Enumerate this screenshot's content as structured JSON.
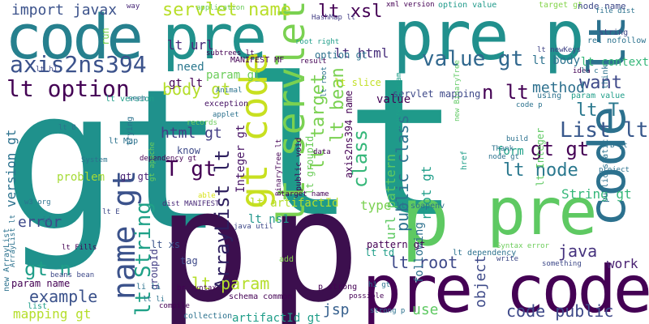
{
  "words": [
    {
      "text": "gt",
      "color": "#1f918c",
      "vertical": false
    },
    {
      "text": "lt",
      "color": "#1f9a8a",
      "vertical": false
    },
    {
      "text": "p",
      "color": "#3c0f4e",
      "vertical": false
    },
    {
      "text": "code",
      "color": "#26808e",
      "vertical": false
    },
    {
      "text": "pre",
      "color": "#21918c",
      "vertical": false
    },
    {
      "text": "pre p",
      "color": "#21908d",
      "vertical": false
    },
    {
      "text": "pre code",
      "color": "#440154",
      "vertical": false
    },
    {
      "text": "pre",
      "color": "#5ec962",
      "vertical": false
    },
    {
      "text": "code lt",
      "color": "#2c718e",
      "vertical": true
    },
    {
      "text": "lt servlet",
      "color": "#7ad151",
      "vertical": true
    },
    {
      "text": "gt code",
      "color": "#c8e020",
      "vertical": true
    },
    {
      "text": "p",
      "color": "#5ec962",
      "vertical": false
    },
    {
      "text": "axis2ns394",
      "color": "#3b528b",
      "vertical": false
    },
    {
      "text": "lt option",
      "color": "#440154",
      "vertical": false
    },
    {
      "text": "servlet name",
      "color": "#b8de29",
      "vertical": false
    },
    {
      "text": "import javax",
      "color": "#3b528b",
      "vertical": false
    },
    {
      "text": "lt xsl",
      "color": "#440154",
      "vertical": false
    },
    {
      "text": "value gt",
      "color": "#31688e",
      "vertical": false
    },
    {
      "text": "lt url",
      "color": "#482878",
      "vertical": false
    },
    {
      "text": "lt html",
      "color": "#472d7b",
      "vertical": false
    },
    {
      "text": "name gt",
      "color": "#3b528b",
      "vertical": true
    },
    {
      "text": "ArrayList lt",
      "color": "#2d1e5e",
      "vertical": true
    },
    {
      "text": "lt String",
      "color": "#1fa187",
      "vertical": true
    },
    {
      "text": "lt param",
      "color": "#b5de2b",
      "vertical": false
    },
    {
      "text": "example",
      "color": "#3b528b",
      "vertical": false
    },
    {
      "text": "gt n",
      "color": "#1f9e89",
      "vertical": false
    },
    {
      "text": "T gt",
      "color": "#440154",
      "vertical": false
    },
    {
      "text": "body gt",
      "color": "#b5de2b",
      "vertical": false
    },
    {
      "text": "html gt",
      "color": "#433e85",
      "vertical": false
    },
    {
      "text": "lt target",
      "color": "#7ad151",
      "vertical": true
    },
    {
      "text": "lt bean",
      "color": "#7ad151",
      "vertical": true
    },
    {
      "text": "class",
      "color": "#35b779",
      "vertical": true
    },
    {
      "text": "public class",
      "color": "#2c728e",
      "vertical": true
    },
    {
      "text": "root gt",
      "color": "#1f9e89",
      "vertical": true
    },
    {
      "text": "url pattern",
      "color": "#5ec962",
      "vertical": true
    },
    {
      "text": "List lt",
      "color": "#38588c",
      "vertical": false
    },
    {
      "text": "want",
      "color": "#3e4989",
      "vertical": false
    },
    {
      "text": "gt gt",
      "color": "#440154",
      "vertical": false
    },
    {
      "text": "lt node",
      "color": "#2a788e",
      "vertical": false
    },
    {
      "text": "n lt",
      "color": "#440154",
      "vertical": false
    },
    {
      "text": "lt T",
      "color": "#2a788e",
      "vertical": false
    },
    {
      "text": "String gt",
      "color": "#35b779",
      "vertical": false
    },
    {
      "text": "method",
      "color": "#2d708e",
      "vertical": false
    },
    {
      "text": "java",
      "color": "#46337e",
      "vertical": false
    },
    {
      "text": "lt root",
      "color": "#3e4989",
      "vertical": false
    },
    {
      "text": "code public",
      "color": "#3e4989",
      "vertical": false
    },
    {
      "text": "jsp",
      "color": "#355f8d",
      "vertical": false
    },
    {
      "text": "use",
      "color": "#5ec962",
      "vertical": false
    },
    {
      "text": "lt context",
      "color": "#35b779",
      "vertical": false
    },
    {
      "text": "form",
      "color": "#1fa188",
      "vertical": false
    },
    {
      "text": "lt body",
      "color": "#2c728e",
      "vertical": false
    },
    {
      "text": "work",
      "color": "#482071",
      "vertical": false
    },
    {
      "text": "value",
      "color": "#440154",
      "vertical": false
    },
    {
      "text": "type",
      "color": "#7ad151",
      "vertical": false
    },
    {
      "text": "object",
      "color": "#3e4a89",
      "vertical": true
    },
    {
      "text": "error",
      "color": "#3e4989",
      "vertical": false
    },
    {
      "text": "mapping gt",
      "color": "#b5de2b",
      "vertical": false
    },
    {
      "text": "version gt",
      "color": "#2c728e",
      "vertical": true
    },
    {
      "text": "lt artifactId",
      "color": "#b5de2b",
      "vertical": false
    },
    {
      "text": "artifactId gt",
      "color": "#1f9e89",
      "vertical": false
    },
    {
      "text": "lt ns1",
      "color": "#1f958b",
      "vertical": false
    },
    {
      "text": "option value",
      "color": "#1f9a8a",
      "vertical": false
    },
    {
      "text": "servlet mapping",
      "color": "#3e4989",
      "vertical": false
    },
    {
      "text": "lt slice",
      "color": "#c2df23",
      "vertical": false
    },
    {
      "text": "gt lt",
      "color": "#440154",
      "vertical": false
    },
    {
      "text": "need",
      "color": "#2a788e",
      "vertical": false
    },
    {
      "text": "param gt",
      "color": "#6ccd5a",
      "vertical": false
    },
    {
      "text": "problem",
      "color": "#a5db36",
      "vertical": false
    },
    {
      "text": "lt td",
      "color": "#1f9e89",
      "vertical": false
    },
    {
      "text": "Integer gt",
      "color": "#471365",
      "vertical": true
    },
    {
      "text": "following",
      "color": "#2d708e",
      "vertical": true
    },
    {
      "text": "pattern gt",
      "color": "#440154",
      "vertical": false
    },
    {
      "text": "know",
      "color": "#3e4989",
      "vertical": false
    },
    {
      "text": "option gt",
      "color": "#2c728e",
      "vertical": false
    },
    {
      "text": "lt xs",
      "color": "#3a538b",
      "vertical": false
    },
    {
      "text": "gt gt",
      "color": "#482173",
      "vertical": false
    },
    {
      "text": "lt version",
      "color": "#1f9e89",
      "vertical": false
    },
    {
      "text": "exception",
      "color": "#471365",
      "vertical": false
    },
    {
      "text": "groupId",
      "color": "#433e85",
      "vertical": true
    },
    {
      "text": "lt groupId",
      "color": "#6ccd5a",
      "vertical": true
    },
    {
      "text": "lt Integer",
      "color": "#5ec962",
      "vertical": true
    },
    {
      "text": "axis2ns394 name",
      "color": "#440154",
      "vertical": true
    },
    {
      "text": "lt h1",
      "color": "#3e4989",
      "vertical": false
    },
    {
      "text": "param name",
      "color": "#440154",
      "vertical": false
    },
    {
      "text": "list",
      "color": "#1f9e89",
      "vertical": false
    },
    {
      "text": "add",
      "color": "#84d44b",
      "vertical": false
    },
    {
      "text": "tag",
      "color": "#3e4989",
      "vertical": false
    },
    {
      "text": "MANIFEST MF",
      "color": "#440154",
      "vertical": false
    },
    {
      "text": "run",
      "color": "#7ad151",
      "vertical": true
    },
    {
      "text": "way",
      "color": "#482878",
      "vertical": false
    },
    {
      "text": "xml version",
      "color": "#440154",
      "vertical": false
    },
    {
      "text": "target gt",
      "color": "#84d44b",
      "vertical": false
    },
    {
      "text": "node name",
      "color": "#3e4989",
      "vertical": false
    },
    {
      "text": "string",
      "color": "#3e4989",
      "vertical": false
    },
    {
      "text": "HashMap lt",
      "color": "#433e85",
      "vertical": false
    },
    {
      "text": "subtrees lt",
      "color": "#440154",
      "vertical": false
    },
    {
      "text": "root right",
      "color": "#1f9e89",
      "vertical": false
    },
    {
      "text": "lt newKeys",
      "color": "#414487",
      "vertical": false
    },
    {
      "text": "rel nofollow",
      "color": "#2c728e",
      "vertical": false
    },
    {
      "text": "application",
      "color": "#6ccd5a",
      "vertical": false
    },
    {
      "text": "lt Map",
      "color": "#2c728e",
      "vertical": false
    },
    {
      "text": "System",
      "color": "#2c728e",
      "vertical": false
    },
    {
      "text": "w3 org",
      "color": "#2c728e",
      "vertical": false
    },
    {
      "text": "id",
      "color": "#2c728e",
      "vertical": false
    },
    {
      "text": "lt B",
      "color": "#2c728e",
      "vertical": false
    },
    {
      "text": "lt E",
      "color": "#3e4989",
      "vertical": false
    },
    {
      "text": "applet",
      "color": "#2c728e",
      "vertical": false
    },
    {
      "text": "records",
      "color": "#6ccd5a",
      "vertical": false
    },
    {
      "text": "Animal",
      "color": "#2c728e",
      "vertical": false
    },
    {
      "text": "seem",
      "color": "#2c728e",
      "vertical": false
    },
    {
      "text": "trying",
      "color": "#2c728e",
      "vertical": true
    },
    {
      "text": "dependency gt",
      "color": "#440154",
      "vertical": false
    },
    {
      "text": "able",
      "color": "#d8e219",
      "vertical": false
    },
    {
      "text": "dist MANIFEST",
      "color": "#482878",
      "vertical": false
    },
    {
      "text": "java util",
      "color": "#3e4989",
      "vertical": false
    },
    {
      "text": "BinaryTree lt",
      "color": "#440154",
      "vertical": true
    },
    {
      "text": "public void",
      "color": "#440154",
      "vertical": true
    },
    {
      "text": "target name",
      "color": "#440154",
      "vertical": false
    },
    {
      "text": "lt soapenv",
      "color": "#2c728e",
      "vertical": false
    },
    {
      "text": "lt dependency",
      "color": "#2c728e",
      "vertical": false
    },
    {
      "text": "code p",
      "color": "#2c728e",
      "vertical": false
    },
    {
      "text": "build",
      "color": "#2c728e",
      "vertical": false
    },
    {
      "text": "write",
      "color": "#3e4989",
      "vertical": false
    },
    {
      "text": "something",
      "color": "#3e4989",
      "vertical": false
    },
    {
      "text": "Syntax error",
      "color": "#6ccd5a",
      "vertical": false
    },
    {
      "text": "project",
      "color": "#2c728e",
      "vertical": false
    },
    {
      "text": "using",
      "color": "#2c728e",
      "vertical": false
    },
    {
      "text": "param value",
      "color": "#1f9e89",
      "vertical": false
    },
    {
      "text": "think",
      "color": "#2c728e",
      "vertical": true
    },
    {
      "text": "idea",
      "color": "#440154",
      "vertical": false
    },
    {
      "text": "lt c",
      "color": "#2c728e",
      "vertical": false
    },
    {
      "text": "node gt",
      "color": "#2c728e",
      "vertical": false
    },
    {
      "text": "B gt",
      "color": "#2c728e",
      "vertical": false
    },
    {
      "text": "Thank",
      "color": "#2c728e",
      "vertical": false
    },
    {
      "text": "public static",
      "color": "#2c728e",
      "vertical": true
    },
    {
      "text": "href",
      "color": "#1f9e89",
      "vertical": true
    },
    {
      "text": "context param",
      "color": "#1f9e89",
      "vertical": true
    },
    {
      "text": "schema common",
      "color": "#440154",
      "vertical": false
    },
    {
      "text": "collection",
      "color": "#2c728e",
      "vertical": false
    },
    {
      "text": "possible",
      "color": "#440154",
      "vertical": false
    },
    {
      "text": "p strong",
      "color": "#440154",
      "vertical": false
    },
    {
      "text": "strong p",
      "color": "#2c728e",
      "vertical": false
    },
    {
      "text": "h1 gt",
      "color": "#2c728e",
      "vertical": false
    },
    {
      "text": "compile",
      "color": "#440154",
      "vertical": false
    },
    {
      "text": "br Syntax",
      "color": "#440154",
      "vertical": false
    },
    {
      "text": "li li",
      "color": "#2c728e",
      "vertical": false
    },
    {
      "text": "lt li",
      "color": "#2c728e",
      "vertical": false
    },
    {
      "text": "new ArrayList",
      "color": "#2c728e",
      "vertical": true
    },
    {
      "text": "lt Fills",
      "color": "#440154",
      "vertical": false
    },
    {
      "text": "beans bean",
      "color": "#3e4989",
      "vertical": false
    },
    {
      "text": "ArrayList lt",
      "color": "#2c728e",
      "vertical": true
    },
    {
      "text": "data",
      "color": "#440154",
      "vertical": false
    },
    {
      "text": "lt root",
      "color": "#2c728e",
      "vertical": true
    },
    {
      "text": "result",
      "color": "#440154",
      "vertical": false
    },
    {
      "text": "file dist",
      "color": "#2c728e",
      "vertical": false
    },
    {
      "text": "new BinaryTree",
      "color": "#5ec962",
      "vertical": true
    },
    {
      "text": "gt apache",
      "color": "#6ccd5a",
      "vertical": true
    }
  ]
}
